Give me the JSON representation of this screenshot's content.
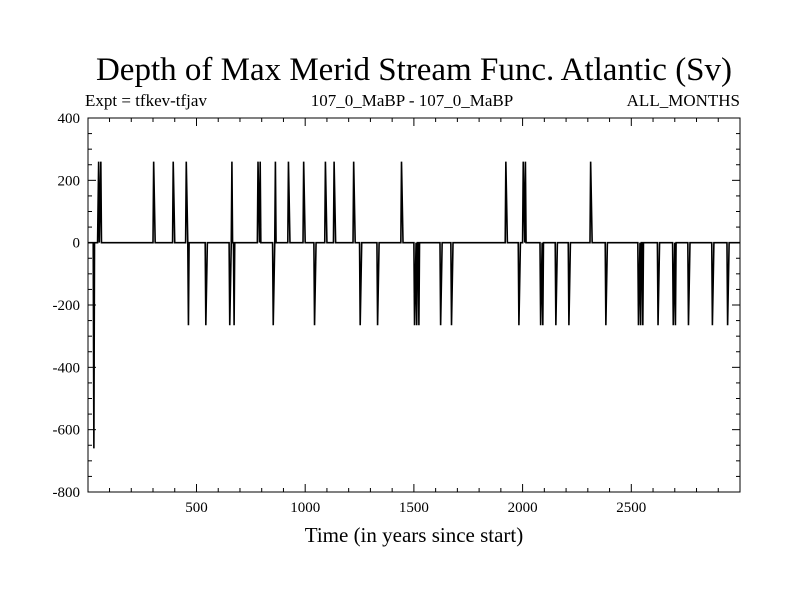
{
  "chart_data": {
    "type": "line",
    "title": "Depth of Max Merid Stream Func. Atlantic (Sv)",
    "subtitle_left": "Expt = tfkev-tfjav",
    "subtitle_center": "107_0_MaBP - 107_0_MaBP",
    "subtitle_right": "ALL_MONTHS",
    "xlabel": "Time (in years since start)",
    "ylabel": "",
    "xlim": [
      1,
      3000
    ],
    "ylim": [
      -800,
      400
    ],
    "xticks": [
      500,
      1000,
      1500,
      2000,
      2500
    ],
    "yticks": [
      400,
      200,
      0,
      -200,
      -400,
      -600,
      -800
    ],
    "grid": false,
    "series": [
      {
        "x": [
          1,
          25,
          28,
          31,
          45,
          50,
          53,
          60,
          63,
          300,
          303,
          310,
          390,
          393,
          400,
          450,
          453,
          460,
          463,
          466,
          470,
          540,
          543,
          550,
          650,
          653,
          660,
          663,
          666,
          670,
          673,
          676,
          680,
          780,
          783,
          790,
          793,
          796,
          800,
          850,
          853,
          860,
          863,
          866,
          870,
          920,
          923,
          930,
          990,
          993,
          1000,
          1040,
          1043,
          1050,
          1090,
          1093,
          1100,
          1130,
          1133,
          1140,
          1220,
          1223,
          1230,
          1250,
          1253,
          1260,
          1330,
          1333,
          1340,
          1440,
          1443,
          1450,
          1500,
          1503,
          1510,
          1513,
          1516,
          1520,
          1523,
          1526,
          1530,
          1620,
          1623,
          1630,
          1670,
          1673,
          1680,
          1920,
          1923,
          1930,
          1980,
          1983,
          1990,
          2000,
          2003,
          2010,
          2013,
          2016,
          2020,
          2080,
          2083,
          2090,
          2093,
          2096,
          2100,
          2150,
          2153,
          2160,
          2210,
          2213,
          2220,
          2310,
          2313,
          2320,
          2380,
          2383,
          2390,
          2530,
          2533,
          2540,
          2543,
          2546,
          2550,
          2553,
          2556,
          2560,
          2620,
          2623,
          2630,
          2690,
          2693,
          2700,
          2703,
          2706,
          2710,
          2760,
          2763,
          2770,
          2870,
          2873,
          2880,
          2940,
          2943,
          2950,
          3000
        ],
        "y": [
          0,
          0,
          -660,
          0,
          0,
          260,
          0,
          260,
          0,
          0,
          260,
          0,
          0,
          260,
          0,
          0,
          260,
          0,
          -265,
          0,
          0,
          0,
          -265,
          0,
          0,
          -265,
          0,
          260,
          0,
          0,
          -265,
          0,
          0,
          0,
          260,
          0,
          260,
          0,
          0,
          0,
          -265,
          0,
          260,
          0,
          0,
          0,
          260,
          0,
          0,
          260,
          0,
          0,
          -265,
          0,
          0,
          260,
          0,
          0,
          260,
          0,
          0,
          260,
          0,
          0,
          -265,
          0,
          0,
          -265,
          0,
          0,
          260,
          0,
          0,
          -265,
          0,
          -265,
          0,
          0,
          -265,
          0,
          0,
          0,
          -265,
          0,
          0,
          -265,
          0,
          0,
          260,
          0,
          0,
          -265,
          0,
          0,
          260,
          0,
          260,
          0,
          0,
          0,
          -265,
          0,
          -265,
          0,
          0,
          0,
          -265,
          0,
          0,
          -265,
          0,
          0,
          260,
          0,
          0,
          -265,
          0,
          0,
          -265,
          0,
          -265,
          0,
          0,
          -265,
          0,
          0,
          0,
          -265,
          0,
          0,
          -265,
          0,
          -265,
          0,
          0,
          0,
          -265,
          0,
          0,
          -265,
          0,
          0,
          -265,
          0,
          0
        ]
      }
    ]
  }
}
